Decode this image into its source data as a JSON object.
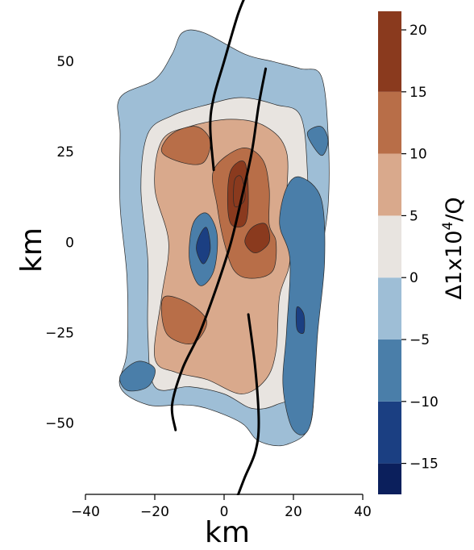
{
  "chart_data": {
    "type": "heatmap",
    "title": "",
    "xlabel": "km",
    "ylabel": "km",
    "xlim": [
      -40,
      40
    ],
    "ylim": [
      -70,
      67
    ],
    "x_ticks": [
      -40,
      -20,
      0,
      20,
      40
    ],
    "y_ticks": [
      50,
      25,
      0,
      -25,
      -50
    ],
    "x_tick_labels": [
      "−40",
      "−20",
      "0",
      "20",
      "40"
    ],
    "y_tick_labels": [
      "50",
      "25",
      "0",
      "−25",
      "−50"
    ],
    "grid": false,
    "colorbar": {
      "label": "Δ1x10⁴/Q",
      "label_base": "Δ1x10",
      "label_exp": "4",
      "label_tail": "/Q",
      "ticks": [
        20,
        15,
        10,
        5,
        0,
        -5,
        -10,
        -15
      ],
      "tick_labels": [
        "20",
        "15",
        "10",
        "5",
        "0",
        "−5",
        "−10",
        "−15"
      ],
      "levels": [
        -17.5,
        -15,
        -10,
        -5,
        0,
        5,
        10,
        15,
        21.5
      ],
      "colors": [
        "#0b1f5c",
        "#1b3f82",
        "#4a7ea9",
        "#9ebed6",
        "#e8e4e0",
        "#d9a98c",
        "#b86e48",
        "#8a3a1e",
        "#5a1414"
      ]
    },
    "fault_traces": [
      {
        "points": [
          [
            7,
            70
          ],
          [
            4,
            63
          ],
          [
            0,
            50
          ],
          [
            -3,
            40
          ],
          [
            -4,
            32
          ],
          [
            -3,
            20
          ]
        ]
      },
      {
        "points": [
          [
            12,
            48
          ],
          [
            10,
            38
          ],
          [
            8,
            25
          ],
          [
            5,
            12
          ],
          [
            2,
            0
          ],
          [
            -2,
            -12
          ],
          [
            -7,
            -25
          ],
          [
            -12,
            -35
          ],
          [
            -15,
            -45
          ],
          [
            -14,
            -52
          ]
        ]
      },
      {
        "points": [
          [
            7,
            -20
          ],
          [
            9,
            -35
          ],
          [
            10,
            -50
          ],
          [
            9,
            -58
          ],
          [
            6,
            -65
          ],
          [
            4,
            -70
          ]
        ]
      }
    ],
    "regions": [
      {
        "level": -5,
        "points": [
          [
            -30,
            40
          ],
          [
            -20,
            45
          ],
          [
            -15,
            52
          ],
          [
            -12,
            58
          ],
          [
            -6,
            58
          ],
          [
            6,
            52
          ],
          [
            14,
            50
          ],
          [
            22,
            48
          ],
          [
            28,
            46
          ],
          [
            30,
            30
          ],
          [
            30,
            10
          ],
          [
            27,
            -10
          ],
          [
            26,
            -30
          ],
          [
            25,
            -50
          ],
          [
            18,
            -56
          ],
          [
            10,
            -55
          ],
          [
            5,
            -50
          ],
          [
            -5,
            -46
          ],
          [
            -12,
            -45
          ],
          [
            -22,
            -45
          ],
          [
            -30,
            -40
          ],
          [
            -28,
            -30
          ],
          [
            -28,
            -10
          ],
          [
            -30,
            10
          ],
          [
            -30,
            30
          ]
        ]
      },
      {
        "level": 0,
        "points": [
          [
            -22,
            30
          ],
          [
            -15,
            35
          ],
          [
            -5,
            38
          ],
          [
            5,
            40
          ],
          [
            15,
            38
          ],
          [
            22,
            35
          ],
          [
            24,
            20
          ],
          [
            24,
            0
          ],
          [
            22,
            -20
          ],
          [
            22,
            -40
          ],
          [
            15,
            -45
          ],
          [
            8,
            -46
          ],
          [
            0,
            -42
          ],
          [
            -10,
            -40
          ],
          [
            -20,
            -40
          ],
          [
            -22,
            -25
          ],
          [
            -22,
            -5
          ],
          [
            -24,
            15
          ]
        ]
      },
      {
        "level": 5,
        "points": [
          [
            -18,
            28
          ],
          [
            -10,
            32
          ],
          [
            2,
            34
          ],
          [
            12,
            32
          ],
          [
            18,
            25
          ],
          [
            18,
            10
          ],
          [
            19,
            -5
          ],
          [
            16,
            -15
          ],
          [
            15,
            -30
          ],
          [
            12,
            -38
          ],
          [
            5,
            -42
          ],
          [
            -5,
            -38
          ],
          [
            -14,
            -36
          ],
          [
            -20,
            -32
          ],
          [
            -18,
            -15
          ],
          [
            -16,
            0
          ],
          [
            -20,
            15
          ]
        ]
      },
      {
        "level": 10,
        "points": [
          [
            -3,
            20
          ],
          [
            5,
            26
          ],
          [
            11,
            23
          ],
          [
            13,
            15
          ],
          [
            13,
            5
          ],
          [
            15,
            0
          ],
          [
            14,
            -8
          ],
          [
            8,
            -10
          ],
          [
            3,
            -8
          ],
          [
            0,
            0
          ],
          [
            -2,
            10
          ]
        ]
      },
      {
        "level": 10,
        "points": [
          [
            -15,
            30
          ],
          [
            -8,
            32
          ],
          [
            -4,
            28
          ],
          [
            -6,
            22
          ],
          [
            -12,
            22
          ],
          [
            -18,
            25
          ]
        ]
      },
      {
        "level": 10,
        "points": [
          [
            -17,
            -15
          ],
          [
            -10,
            -17
          ],
          [
            -5,
            -22
          ],
          [
            -9,
            -28
          ],
          [
            -16,
            -26
          ],
          [
            -18,
            -20
          ]
        ]
      },
      {
        "level": 15,
        "points": [
          [
            2,
            20
          ],
          [
            6,
            22
          ],
          [
            7,
            12
          ],
          [
            6,
            5
          ],
          [
            2,
            5
          ],
          [
            1,
            12
          ]
        ]
      },
      {
        "level": 15,
        "points": [
          [
            8,
            4
          ],
          [
            12,
            5
          ],
          [
            13,
            0
          ],
          [
            9,
            -3
          ],
          [
            6,
            0
          ]
        ]
      },
      {
        "level": 20,
        "points": [
          [
            3,
            17
          ],
          [
            5,
            18
          ],
          [
            6,
            12
          ],
          [
            3,
            10
          ]
        ]
      },
      {
        "level": -10,
        "points": [
          [
            -9,
            5
          ],
          [
            -5,
            8
          ],
          [
            -2,
            2
          ],
          [
            -3,
            -8
          ],
          [
            -7,
            -12
          ],
          [
            -10,
            -5
          ]
        ]
      },
      {
        "level": -15,
        "points": [
          [
            -7,
            2
          ],
          [
            -5,
            4
          ],
          [
            -4,
            -2
          ],
          [
            -6,
            -6
          ],
          [
            -8,
            -2
          ]
        ]
      },
      {
        "level": -10,
        "points": [
          [
            18,
            15
          ],
          [
            22,
            18
          ],
          [
            28,
            12
          ],
          [
            29,
            -5
          ],
          [
            27,
            -25
          ],
          [
            25,
            -50
          ],
          [
            20,
            -52
          ],
          [
            17,
            -40
          ],
          [
            18,
            -25
          ],
          [
            19,
            -5
          ],
          [
            16,
            5
          ]
        ]
      },
      {
        "level": -15,
        "points": [
          [
            21,
            -18
          ],
          [
            23,
            -20
          ],
          [
            23,
            -25
          ],
          [
            21,
            -24
          ]
        ]
      },
      {
        "level": -10,
        "points": [
          [
            24,
            30
          ],
          [
            28,
            32
          ],
          [
            30,
            28
          ],
          [
            28,
            24
          ]
        ]
      },
      {
        "level": -10,
        "points": [
          [
            -30,
            -37
          ],
          [
            -25,
            -33
          ],
          [
            -20,
            -35
          ],
          [
            -22,
            -40
          ],
          [
            -28,
            -41
          ]
        ]
      }
    ]
  }
}
